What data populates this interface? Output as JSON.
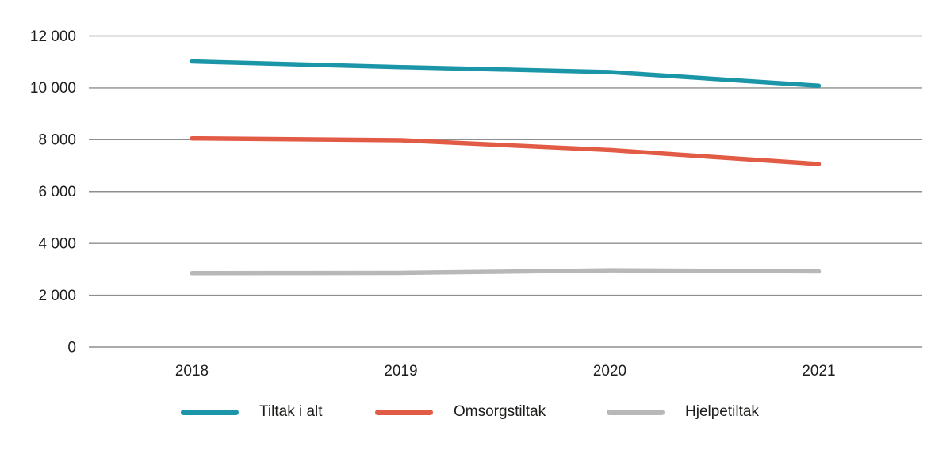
{
  "chart_data": {
    "type": "line",
    "x": [
      "2018",
      "2019",
      "2020",
      "2021"
    ],
    "series": [
      {
        "name": "Tiltak i alt",
        "color": "#1b96a8",
        "values": [
          11020,
          10800,
          10610,
          10080
        ]
      },
      {
        "name": "Omsorgstiltak",
        "color": "#e25b44",
        "values": [
          8050,
          7980,
          7600,
          7060
        ]
      },
      {
        "name": "Hjelpetiltak",
        "color": "#b8b8b8",
        "values": [
          2850,
          2860,
          2960,
          2920
        ]
      }
    ],
    "y_ticks": [
      {
        "value": 12000,
        "label": "12 000"
      },
      {
        "value": 10000,
        "label": "10 000"
      },
      {
        "value": 8000,
        "label": "8 000"
      },
      {
        "value": 6000,
        "label": "6 000"
      },
      {
        "value": 4000,
        "label": "4 000"
      },
      {
        "value": 2000,
        "label": "2 000"
      },
      {
        "value": 0,
        "label": "0"
      }
    ],
    "ylim": [
      0,
      12000
    ],
    "grid": true,
    "legend_position": "bottom"
  },
  "colors": {
    "grid": "#8e8e8e",
    "text": "#1d1d1b",
    "background": "#ffffff"
  }
}
